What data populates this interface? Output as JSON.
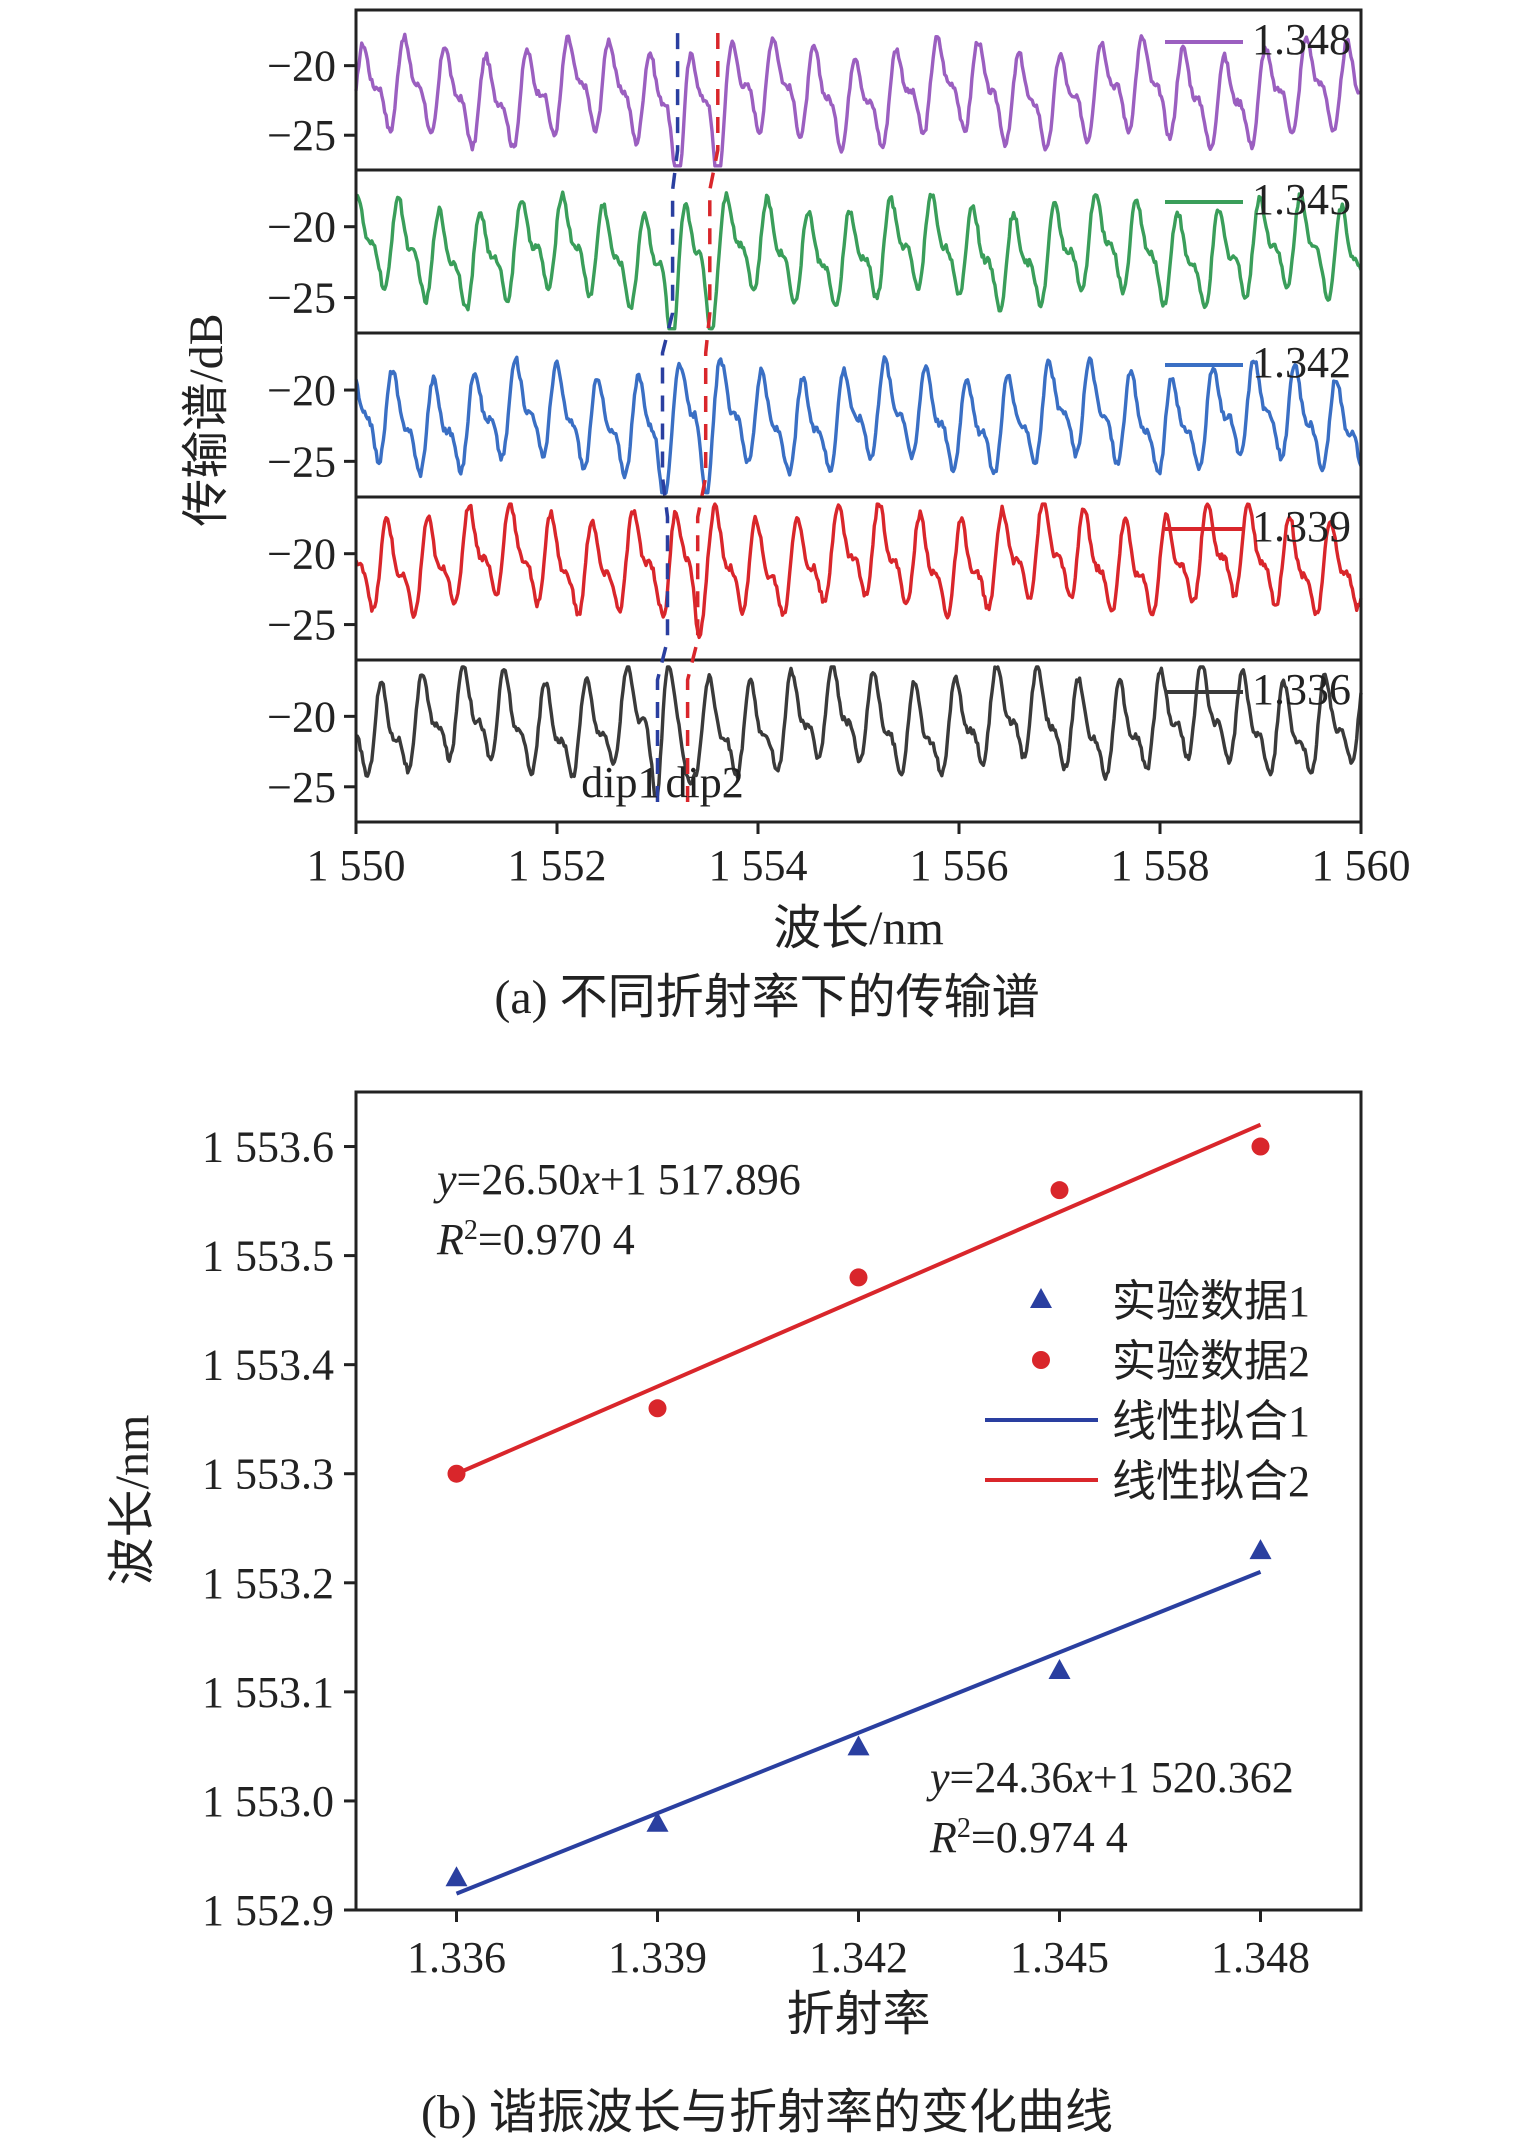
{
  "chart_data": [
    {
      "type": "line",
      "xlabel": "波长/nm",
      "ylabel": "传输谱/dB",
      "caption": "(a) 不同折射率下的传输谱",
      "xlim": [
        1550,
        1560
      ],
      "x_tick_labels": [
        "1 550",
        "1 552",
        "1 554",
        "1 556",
        "1 558",
        "1 560"
      ],
      "x_ticks": [
        1550,
        1552,
        1554,
        1556,
        1558,
        1560
      ],
      "panel_ylim": [
        -27.5,
        -16
      ],
      "y_ticks": [
        -20,
        -25
      ],
      "y_tick_labels": [
        "−20",
        "−25"
      ],
      "legend": "top-right",
      "series": [
        {
          "name": "1.348",
          "color": "#9b5fc0",
          "baseline": -22.0
        },
        {
          "name": "1.345",
          "color": "#3a9e5a",
          "baseline": -21.8
        },
        {
          "name": "1.342",
          "color": "#3a6fc4",
          "baseline": -22.0
        },
        {
          "name": "1.339",
          "color": "#d9262b",
          "baseline": -20.5
        },
        {
          "name": "1.336",
          "color": "#3a3a3a",
          "baseline": -20.5
        }
      ],
      "markers": {
        "dip1_label": "dip1",
        "dip2_label": "dip2",
        "dip1_x": [
          1553.0,
          1553.1,
          1553.05,
          1553.15,
          1553.2
        ],
        "dip2_x": [
          1553.3,
          1553.4,
          1553.48,
          1553.52,
          1553.6
        ],
        "dip1_color": "#2a3fa0",
        "dip2_color": "#d9262b"
      }
    },
    {
      "type": "scatter",
      "xlabel": "折射率",
      "ylabel": "波长/nm",
      "caption": "(b) 谐振波长与折射率的变化曲线",
      "xlim": [
        1.3345,
        1.3495
      ],
      "ylim": [
        1552.9,
        1553.65
      ],
      "x_ticks": [
        1.336,
        1.339,
        1.342,
        1.345,
        1.348
      ],
      "x_tick_labels": [
        "1.336",
        "1.339",
        "1.342",
        "1.345",
        "1.348"
      ],
      "y_ticks": [
        1552.9,
        1553.0,
        1553.1,
        1553.2,
        1553.3,
        1553.4,
        1553.5,
        1553.6
      ],
      "y_tick_labels": [
        "1 552.9",
        "1 553.0",
        "1 553.1",
        "1 553.2",
        "1 553.3",
        "1 553.4",
        "1 553.5",
        "1 553.6"
      ],
      "legend": "top-right",
      "series": [
        {
          "name": "实验数据1",
          "marker": "triangle",
          "color": "#2a3fa0",
          "x": [
            1.336,
            1.339,
            1.342,
            1.345,
            1.348
          ],
          "y": [
            1552.93,
            1552.98,
            1553.05,
            1553.12,
            1553.23
          ]
        },
        {
          "name": "实验数据2",
          "marker": "circle",
          "color": "#d9262b",
          "x": [
            1.336,
            1.339,
            1.342,
            1.345,
            1.348
          ],
          "y": [
            1553.3,
            1553.36,
            1553.48,
            1553.56,
            1553.6
          ]
        },
        {
          "name": "线性拟合1",
          "type": "line",
          "color": "#2a3fa0",
          "x": [
            1.336,
            1.348
          ],
          "y": [
            1552.915,
            1553.21
          ]
        },
        {
          "name": "线性拟合2",
          "type": "line",
          "color": "#d9262b",
          "x": [
            1.336,
            1.348
          ],
          "y": [
            1553.3,
            1553.62
          ]
        }
      ],
      "annotations": {
        "fit2_eq": [
          "y",
          "=26.50",
          "x",
          "+1 517.896"
        ],
        "fit2_r2": [
          "R",
          "2",
          "=0.970 4"
        ],
        "fit1_eq": [
          "y",
          "=24.36",
          "x",
          "+1 520.362"
        ],
        "fit1_r2": [
          "R",
          "2",
          "=0.974 4"
        ]
      }
    }
  ]
}
